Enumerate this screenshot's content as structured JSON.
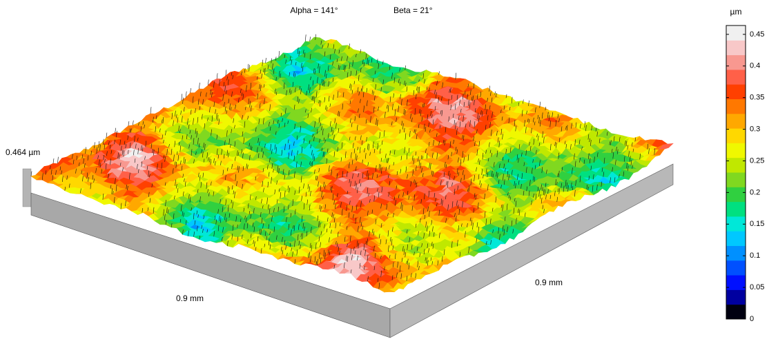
{
  "chart_data": {
    "type": "surface3d",
    "view_labels": [
      "Alpha = 141°",
      "Beta = 21°"
    ],
    "height_label": "0.464 µm",
    "x_axis_label": "0.9 mm",
    "y_axis_label": "0.9 mm",
    "colorbar": {
      "unit": "µm",
      "lim": [
        0,
        0.464
      ],
      "ticks": [
        0,
        0.05,
        0.1,
        0.15,
        0.2,
        0.25,
        0.3,
        0.35,
        0.4,
        0.45
      ],
      "colors": [
        "#000010",
        "#0000a0",
        "#0010ff",
        "#0050ff",
        "#0090ff",
        "#00c8ff",
        "#00e8d8",
        "#00e080",
        "#30d040",
        "#80d820",
        "#c0e800",
        "#f0f800",
        "#ffd800",
        "#ffa800",
        "#ff7800",
        "#ff4000",
        "#ff6048",
        "#f89890",
        "#f8c8c8",
        "#f0f0f0"
      ]
    }
  }
}
